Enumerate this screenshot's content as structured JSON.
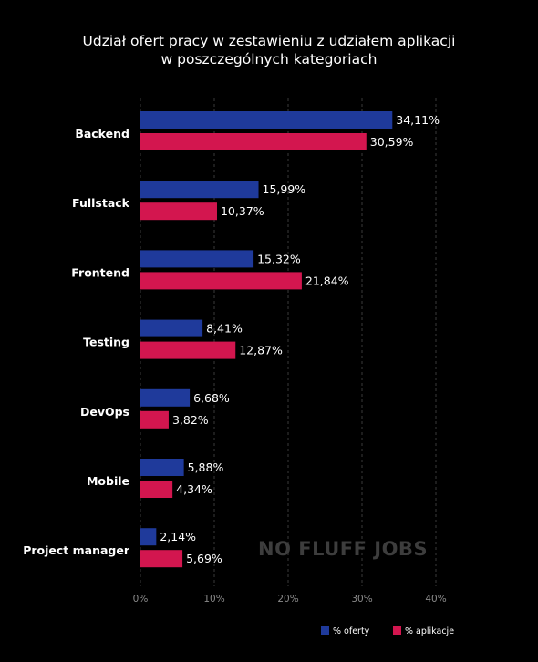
{
  "chart_data": {
    "type": "bar",
    "orientation": "horizontal",
    "title": "Udział ofert pracy w zestawieniu z udziałem aplikacji",
    "subtitle": "w poszczególnych kategoriach",
    "categories": [
      "Backend",
      "Fullstack",
      "Frontend",
      "Testing",
      "DevOps",
      "Mobile",
      "Project manager"
    ],
    "series": [
      {
        "name": "% oferty",
        "color": "#1f3a9b",
        "values": [
          34.11,
          15.99,
          15.32,
          8.41,
          6.68,
          5.88,
          2.14
        ],
        "labels": [
          "34,11%",
          "15,99%",
          "15,32%",
          "8,41%",
          "6,68%",
          "5,88%",
          "2,14%"
        ]
      },
      {
        "name": "% aplikacje",
        "color": "#d3164f",
        "values": [
          30.59,
          10.37,
          21.84,
          12.87,
          3.82,
          4.34,
          5.69
        ],
        "labels": [
          "30,59%",
          "10,37%",
          "21,84%",
          "12,87%",
          "3,82%",
          "4,34%",
          "5,69%"
        ]
      }
    ],
    "xlim": [
      0,
      40
    ],
    "x_ticks": [
      0,
      10,
      20,
      30,
      40
    ],
    "x_tick_labels": [
      "0%",
      "10%",
      "20%",
      "30%",
      "40%"
    ],
    "grid": "vertical dashed",
    "legend_position": "bottom-right",
    "watermark": "NO FLUFF JOBS"
  }
}
